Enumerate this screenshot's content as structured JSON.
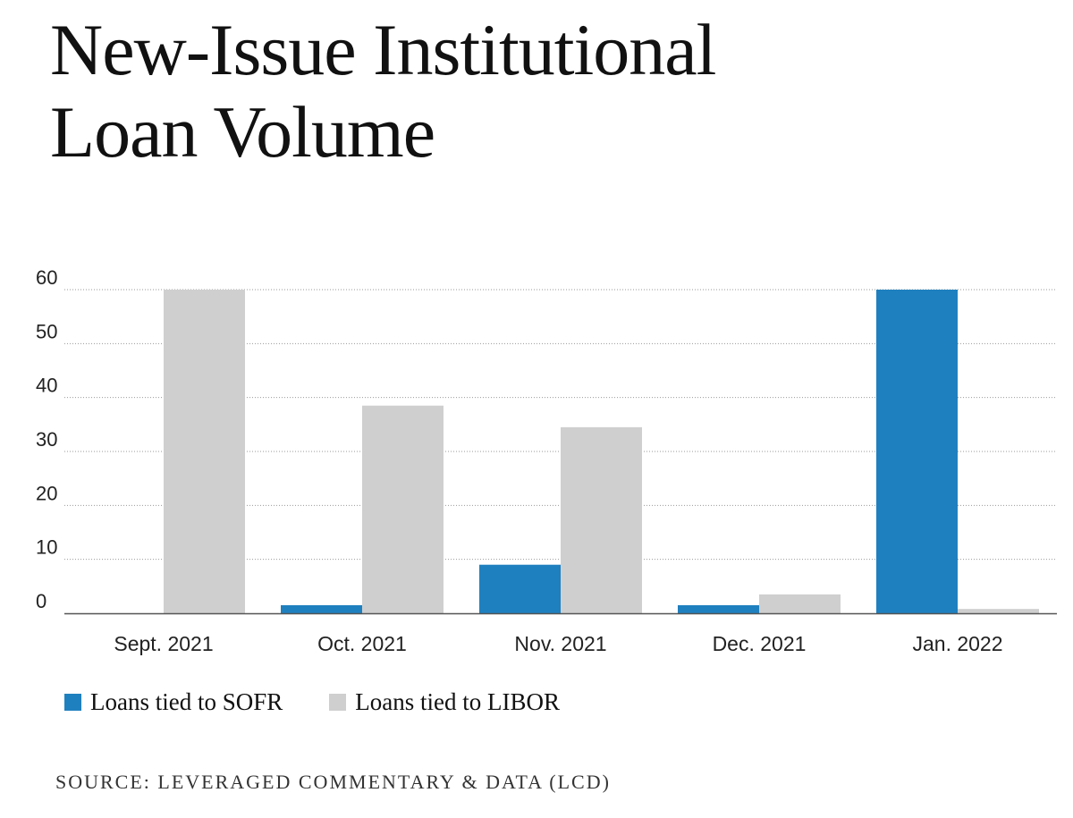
{
  "chart_data": {
    "type": "bar",
    "title_lines": [
      "New-Issue Institutional",
      "Loan Volume"
    ],
    "categories": [
      "Sept. 2021",
      "Oct. 2021",
      "Nov. 2021",
      "Dec. 2021",
      "Jan. 2022"
    ],
    "series": [
      {
        "name": "Loans tied to SOFR",
        "color": "#1f80bf",
        "values": [
          0,
          1.5,
          9,
          1.5,
          60
        ]
      },
      {
        "name": "Loans tied to LIBOR",
        "color": "#cfcfcf",
        "values": [
          60,
          38.5,
          34.5,
          3.5,
          0.8
        ]
      }
    ],
    "y_ticks": [
      "0",
      "10",
      "20",
      "30",
      "40",
      "50",
      "60"
    ],
    "ylim": [
      0,
      60
    ],
    "grid": true,
    "legend_position": "bottom-left",
    "xlabel": "",
    "ylabel": ""
  },
  "source": "SOURCE: LEVERAGED COMMENTARY & DATA (LCD)"
}
